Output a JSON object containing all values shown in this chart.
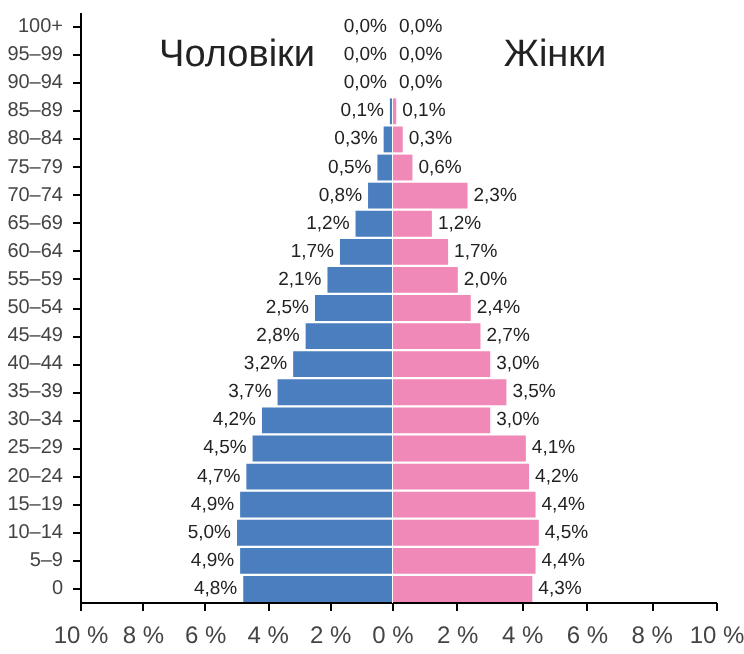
{
  "chart_data": [
    {
      "type": "bar",
      "orientation": "horizontal",
      "categories": [
        "100+",
        "95–99",
        "90–94",
        "85–89",
        "80–84",
        "75–79",
        "70–74",
        "65–69",
        "60–64",
        "55–59",
        "50–54",
        "45–49",
        "40–44",
        "35–39",
        "30–34",
        "25–29",
        "20–24",
        "15–19",
        "10–14",
        "5–9",
        "0"
      ],
      "xlim": [
        10,
        0
      ],
      "xticks": [
        {
          "value": 10,
          "label": "10 %"
        },
        {
          "value": 8,
          "label": "8 %"
        },
        {
          "value": 6,
          "label": "6 %"
        },
        {
          "value": 4,
          "label": "4 %"
        },
        {
          "value": 2,
          "label": "2 %"
        },
        {
          "value": 0,
          "label": null
        }
      ],
      "series": [
        {
          "name": "Чоловіки",
          "color": "#4a7ebf",
          "values": [
            0.0,
            0.0,
            0.0,
            0.1,
            0.3,
            0.5,
            0.8,
            1.2,
            1.7,
            2.1,
            2.5,
            2.8,
            3.2,
            3.7,
            4.2,
            4.5,
            4.7,
            4.9,
            5.0,
            4.9,
            4.8
          ],
          "value_labels": [
            "0,0%",
            "0,0%",
            "0,0%",
            "0,1%",
            "0,3%",
            "0,5%",
            "0,8%",
            "1,2%",
            "1,7%",
            "2,1%",
            "2,5%",
            "2,8%",
            "3,2%",
            "3,7%",
            "4,2%",
            "4,5%",
            "4,7%",
            "4,9%",
            "5,0%",
            "4,9%",
            "4,8%"
          ]
        }
      ]
    },
    {
      "type": "bar",
      "orientation": "horizontal",
      "tick_labels": "x",
      "xlim": [
        0,
        10
      ],
      "xticks": [
        {
          "value": 0,
          "label": "0 %"
        },
        {
          "value": 2,
          "label": "2 %"
        },
        {
          "value": 4,
          "label": "4 %"
        },
        {
          "value": 6,
          "label": "6 %"
        },
        {
          "value": 8,
          "label": "8 %"
        },
        {
          "value": 10,
          "label": "10 %"
        }
      ],
      "series": [
        {
          "name": "Жінки",
          "color": "#f088b8",
          "values": [
            0.0,
            0.0,
            0.0,
            0.1,
            0.3,
            0.6,
            2.3,
            1.2,
            1.7,
            2.0,
            2.4,
            2.7,
            3.0,
            3.5,
            3.0,
            4.1,
            4.2,
            4.4,
            4.5,
            4.4,
            4.3
          ],
          "value_labels": [
            "0,0%",
            "0,0%",
            "0,0%",
            "0,1%",
            "0,3%",
            "0,6%",
            "2,3%",
            "1,2%",
            "1,7%",
            "2,0%",
            "2,4%",
            "2,7%",
            "3,0%",
            "3,5%",
            "3,0%",
            "4,1%",
            "4,2%",
            "4,4%",
            "4,5%",
            "4,4%",
            "4,3%"
          ]
        }
      ]
    }
  ]
}
